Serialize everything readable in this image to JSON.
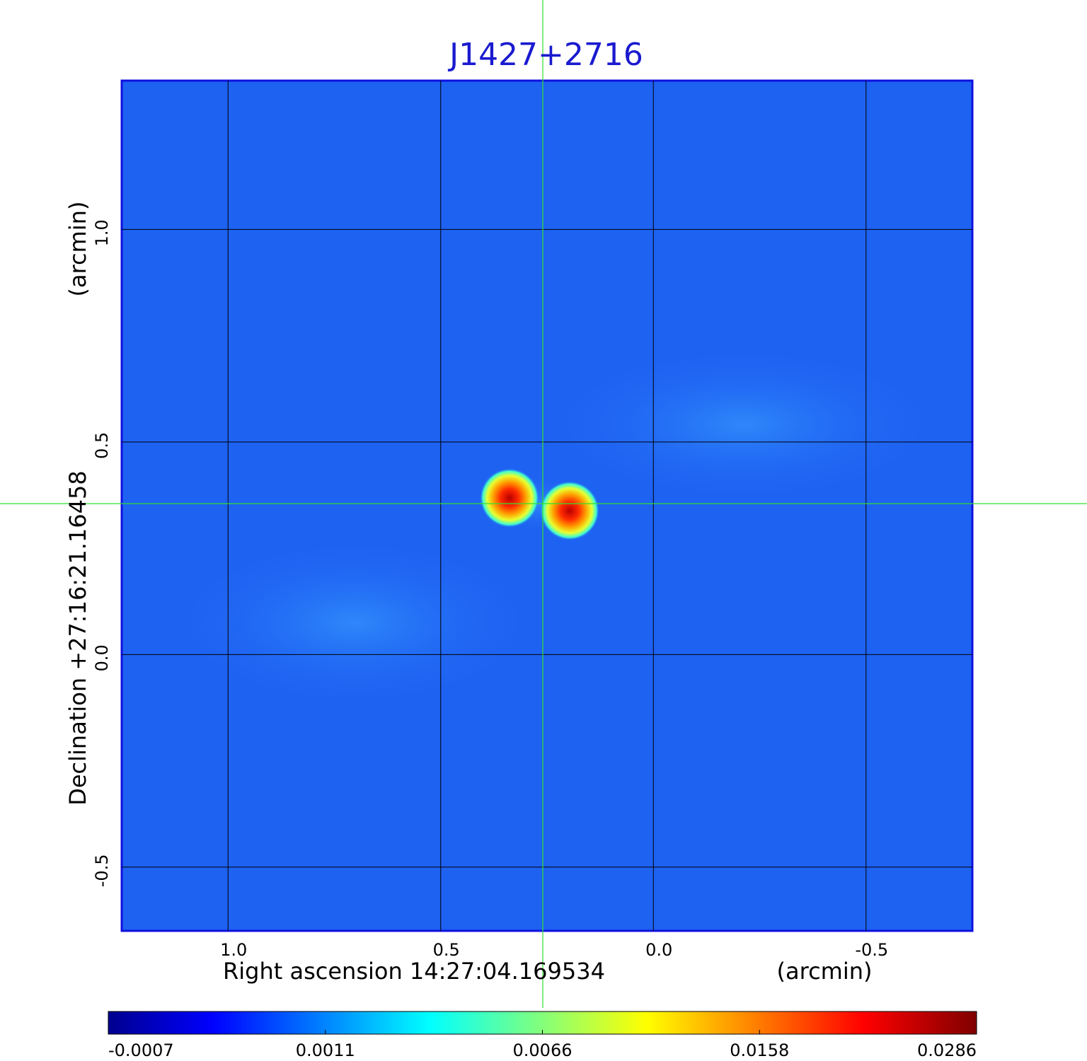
{
  "chart_data": {
    "type": "image",
    "title": "J1427+2716",
    "x_label": "Right ascension  14:27:04.169534",
    "x_unit": "(arcmin)",
    "y_label": "Declination  +27:16:21.16458",
    "y_unit": "(arcmin)",
    "xlim": [
      1.25,
      -0.75
    ],
    "ylim": [
      -0.65,
      1.35
    ],
    "xticks": [
      {
        "value": 1,
        "label": "1.0"
      },
      {
        "value": 0.5,
        "label": "0.5"
      },
      {
        "value": 0,
        "label": "0.0"
      },
      {
        "value": -0.5,
        "label": "-0.5"
      }
    ],
    "yticks": [
      {
        "value": 1,
        "label": "1.0"
      },
      {
        "value": 0.5,
        "label": "0.5"
      },
      {
        "value": 0,
        "label": "0.0"
      },
      {
        "value": -0.5,
        "label": "-0.5"
      }
    ],
    "grid": true,
    "colorbar_ticks": [
      -0.0007,
      0.0011,
      0.0066,
      0.0158,
      0.0286
    ]
  }
}
